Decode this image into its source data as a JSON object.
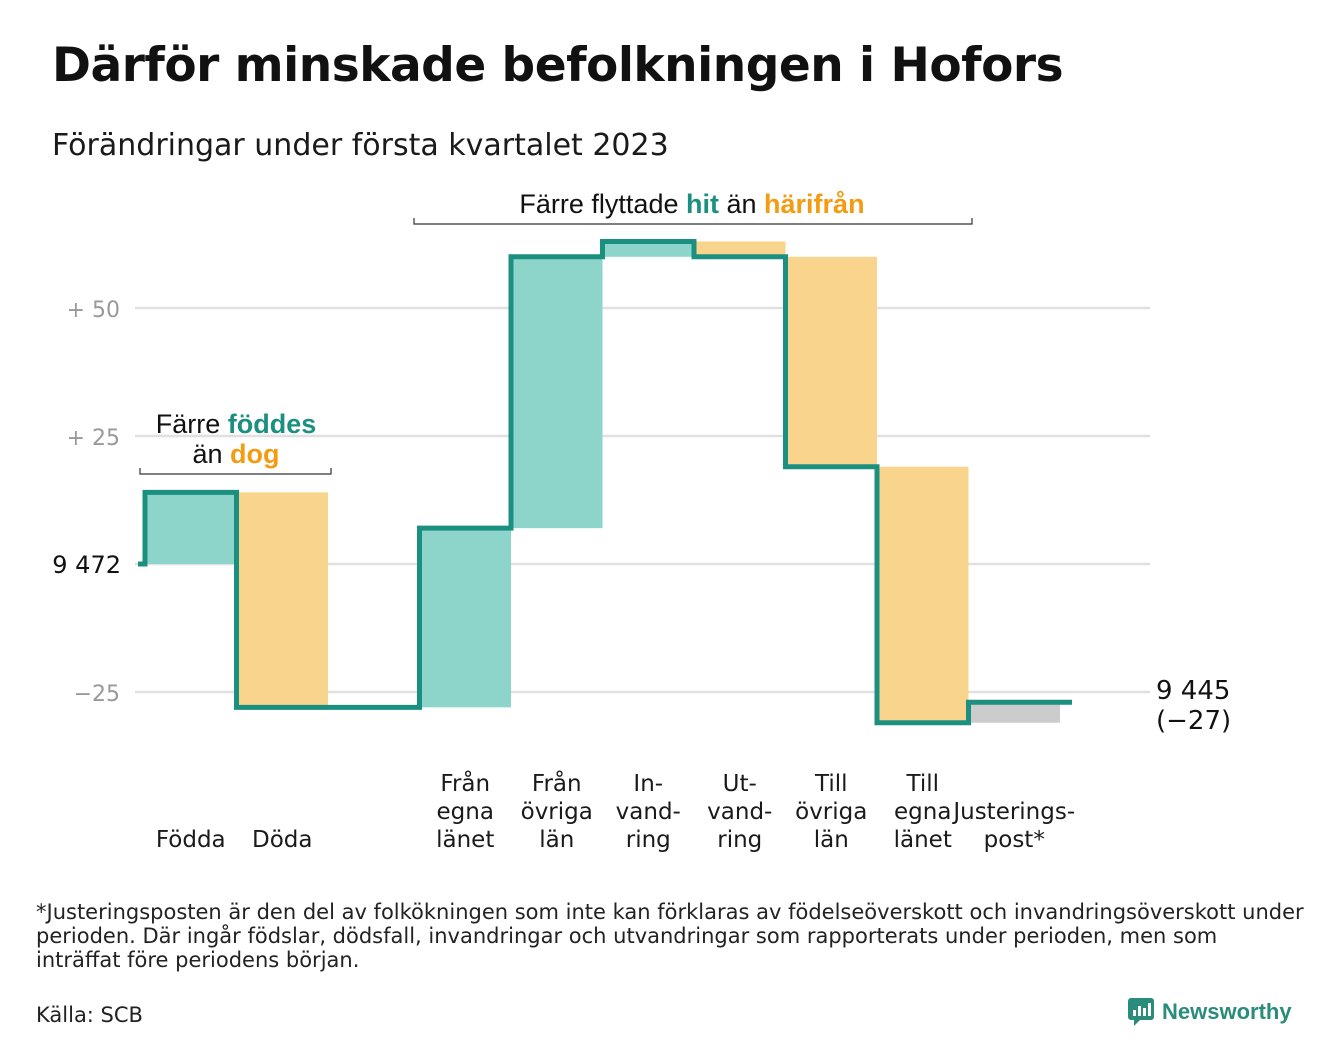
{
  "title": "Därför minskade befolkningen i Hofors",
  "subtitle": "Förändringar under första kvartalet 2023",
  "footnote": "*Justeringsposten är den del av folkökningen som inte kan förklaras av födelseöverskott och invandringsöverskott under perioden. Där ingår födslar, dödsfall, invandringar och utvandringar som rapporterats under perioden, men som inträffat före periodens början.",
  "source": "Källa: SCB",
  "brand": "Newsworthy",
  "colors": {
    "in": "#8dd5cb",
    "out": "#f9d48c",
    "adjust": "#cccccc",
    "line": "#1c9080",
    "accent_teal": "#1c9080",
    "accent_orange": "#f39c12",
    "grid": "#e0e0e0"
  },
  "annotations": {
    "births": {
      "line1_prefix": "Färre ",
      "line1_hit": "föddes",
      "line2_prefix": "än ",
      "line2_out": "dog"
    },
    "moves": {
      "prefix": "Färre flyttade ",
      "hit": "hit",
      "middle": " än ",
      "out": "härifrån"
    }
  },
  "chart_data": {
    "type": "waterfall",
    "start_label": "9 472",
    "end_label_line1": "9 445",
    "end_label_line2": "(−27)",
    "start_value": 0,
    "yticks": [
      {
        "value": 50,
        "label": "+ 50"
      },
      {
        "value": 25,
        "label": "+ 25"
      },
      {
        "value": -25,
        "label": "−25"
      }
    ],
    "ylim": [
      -32,
      68
    ],
    "categories": [
      {
        "key": "fodda",
        "label": [
          "Födda"
        ],
        "delta": 14,
        "kind": "in"
      },
      {
        "key": "doda",
        "label": [
          "Döda"
        ],
        "delta": -42,
        "kind": "out"
      },
      {
        "key": "gap",
        "label": [
          ""
        ],
        "delta": 0,
        "kind": "gap"
      },
      {
        "key": "fran_egna",
        "label": [
          "Från",
          "egna",
          "länet"
        ],
        "delta": 35,
        "kind": "in"
      },
      {
        "key": "fran_ovriga",
        "label": [
          "Från",
          "övriga",
          "län"
        ],
        "delta": 53,
        "kind": "in"
      },
      {
        "key": "invandring",
        "label": [
          "In-",
          "vand-",
          "ring"
        ],
        "delta": 3,
        "kind": "in"
      },
      {
        "key": "utvandring",
        "label": [
          "Ut-",
          "vand-",
          "ring"
        ],
        "delta": -3,
        "kind": "out"
      },
      {
        "key": "till_ovriga",
        "label": [
          "Till",
          "övriga",
          "län"
        ],
        "delta": -41,
        "kind": "out"
      },
      {
        "key": "till_egna",
        "label": [
          "Till",
          "egna",
          "länet"
        ],
        "delta": -50,
        "kind": "out"
      },
      {
        "key": "justering",
        "label": [
          "Justerings-",
          "post*"
        ],
        "delta": 4,
        "kind": "adjust"
      }
    ],
    "end_value": -27
  }
}
